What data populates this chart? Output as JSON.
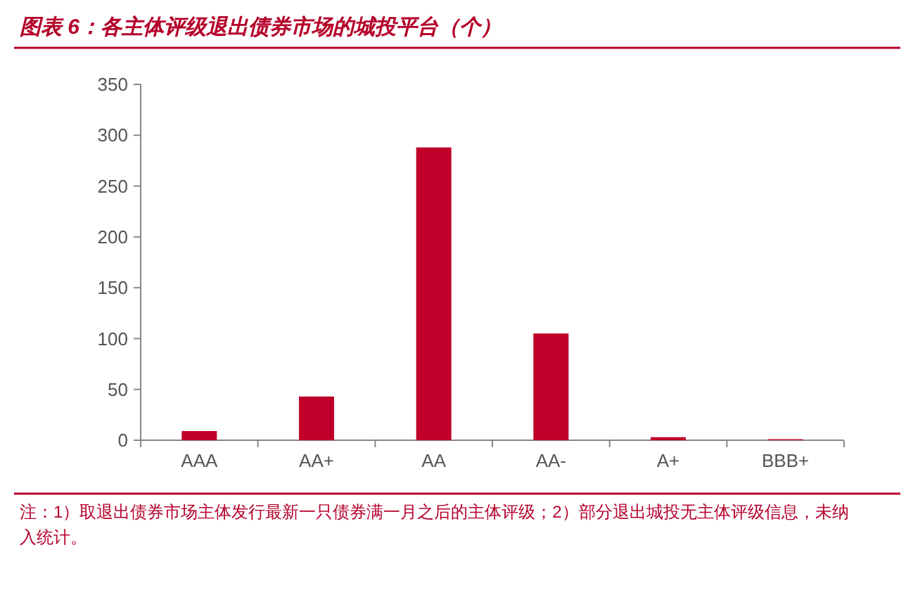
{
  "chart_data": {
    "type": "bar",
    "title": "图表 6：各主体评级退出债券市场的城投平台（个）",
    "categories": [
      "AAA",
      "AA+",
      "AA",
      "AA-",
      "A+",
      "BBB+"
    ],
    "values": [
      9,
      43,
      288,
      105,
      3,
      1
    ],
    "color": "#c0002a",
    "ylim": [
      0,
      350
    ],
    "yticks": [
      0,
      50,
      100,
      150,
      200,
      250,
      300,
      350
    ],
    "grid": false,
    "annotations": [
      "注：1）取退出债券市场主体发行最新一只债券满一月之后的主体评级；2）部分退出城投无主体评级信息，未纳入统计。"
    ]
  }
}
